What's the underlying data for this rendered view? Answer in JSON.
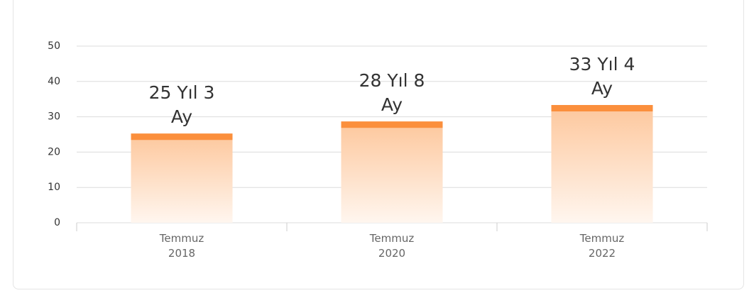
{
  "chart_data": {
    "type": "bar",
    "categories": [
      "Temmuz 2018",
      "Temmuz 2020",
      "Temmuz 2022"
    ],
    "values": [
      25.25,
      28.67,
      33.33
    ],
    "value_labels": [
      "25 Yıl 3 Ay",
      "28 Yıl 8 Ay",
      "33 Yıl 4 Ay"
    ],
    "color": "#fb8f3c",
    "ylim": [
      0,
      50
    ],
    "yticks": [
      0,
      10,
      20,
      30,
      40,
      50
    ],
    "grid": true
  }
}
